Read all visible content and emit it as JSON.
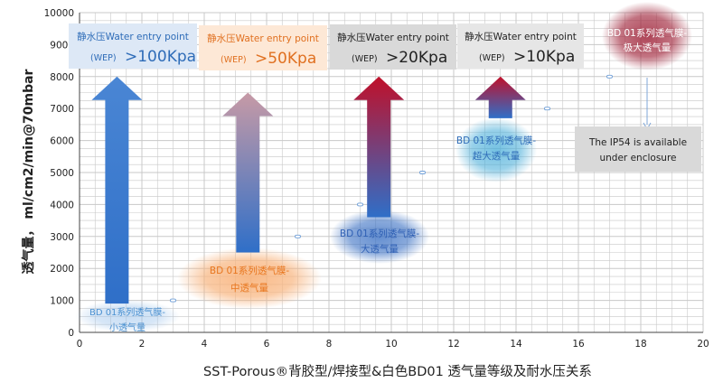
{
  "chart_data": {
    "type": "scatter",
    "xlabel": "SST-Porous®背胶型/焊接型&白色BD01 透气量等级及耐水压关系",
    "ylabel": "透气量， ml/cm2/min@70mbar",
    "xlim": [
      0,
      20
    ],
    "ylim": [
      0,
      10000
    ],
    "x_ticks": [
      0,
      2,
      4,
      6,
      8,
      10,
      12,
      14,
      16,
      18,
      20
    ],
    "y_ticks": [
      0,
      1000,
      2000,
      3000,
      4000,
      5000,
      6000,
      7000,
      8000,
      9000,
      10000
    ],
    "grid": true,
    "points": [
      {
        "x": 3.0,
        "y": 1000
      },
      {
        "x": 7.0,
        "y": 3000
      },
      {
        "x": 9.0,
        "y": 4000
      },
      {
        "x": 11.0,
        "y": 5000
      },
      {
        "x": 15.0,
        "y": 7000
      },
      {
        "x": 17.0,
        "y": 8000
      }
    ],
    "arrows": [
      {
        "x": 1.2,
        "y_from": 900,
        "y_to": 8000,
        "color_top": "#4a86d4",
        "color_bottom": "#2f6fc8"
      },
      {
        "x": 5.4,
        "y_from": 2500,
        "y_to": 7500,
        "color_top": "#c79aa6",
        "color_bottom": "#2f6fc8"
      },
      {
        "x": 9.6,
        "y_from": 3600,
        "y_to": 8000,
        "color_top": "#c0102a",
        "color_bottom": "#2f6fc8"
      },
      {
        "x": 13.5,
        "y_from": 6700,
        "y_to": 8000,
        "color_top": "#c0102a",
        "color_bottom": "#2f6fc8"
      }
    ],
    "wep_boxes": [
      {
        "line1": "静水压Water entry point",
        "prefix": "(WEP)",
        "value": ">100Kpa",
        "bg": "#dde8f6",
        "fg_line1": "#2e6cb8",
        "fg_value": "#2e6cb8"
      },
      {
        "line1": "静水压Water entry point",
        "prefix": "(WEP)",
        "value": ">50Kpa",
        "bg": "#fde8d6",
        "fg_line1": "#e07020",
        "fg_value": "#e07020"
      },
      {
        "line1": "静水压Water entry point",
        "prefix": "(WEP)",
        "value": ">20Kpa",
        "bg": "#d9d9d9",
        "fg_line1": "#222222",
        "fg_value": "#222222"
      },
      {
        "line1": "静水压Water entry point",
        "prefix": "(WEP)",
        "value": ">10Kpa",
        "bg": "#e6e6e6",
        "fg_line1": "#222222",
        "fg_value": "#222222"
      }
    ],
    "membranes": [
      {
        "line1": "BD 01系列透气膜-",
        "line2": "小透气量",
        "glow": "#9cc3ec",
        "fg": "#4a90d0"
      },
      {
        "line1": "BD 01系列透气膜-",
        "line2": "中透气量",
        "glow": "#f8b27a",
        "fg": "#e8761e"
      },
      {
        "line1": "BD 01系列透气膜-",
        "line2": "大透气量",
        "glow": "#2f68c0",
        "fg": "#2e5fb4"
      },
      {
        "line1": "BD 01系列透气膜-",
        "line2": "超大透气量",
        "glow": "#3aa7d6",
        "fg": "#2e6cb8"
      },
      {
        "line1": "BD 01系列透气膜-",
        "line2": "极大透气量",
        "glow": "#a0243a",
        "fg": "#ffffff"
      }
    ],
    "note": {
      "line1": "The IP54 is available",
      "line2": "under enclosure",
      "bg": "#d9d9d9",
      "fg": "#222222"
    },
    "colors": {
      "grid": "#c8c8c8",
      "axis": "#444444",
      "point": "#6f9fd8",
      "callout_arrow": "#7fa7d8"
    }
  }
}
